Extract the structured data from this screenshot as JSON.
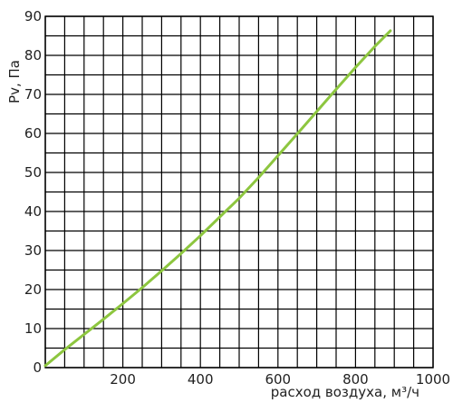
{
  "chart_data": {
    "type": "line",
    "title": "",
    "xlabel": "расход воздуха, м³/ч",
    "ylabel": "Pv, Па",
    "xlim": [
      0,
      1000
    ],
    "ylim": [
      0,
      90
    ],
    "x_ticks": [
      200,
      400,
      600,
      800,
      1000
    ],
    "y_ticks": [
      0,
      10,
      20,
      30,
      40,
      50,
      60,
      70,
      80,
      90
    ],
    "grid": true,
    "line_color": "#8dc63f",
    "grid_color": "#000000",
    "series": [
      {
        "x": [
          0,
          50,
          100,
          150,
          200,
          250,
          300,
          350,
          400,
          450,
          500,
          550,
          600,
          650,
          700,
          750,
          800,
          850,
          890
        ],
        "values": [
          0.5,
          4.6,
          8.5,
          12.4,
          16.4,
          20.5,
          24.8,
          29.2,
          33.8,
          38.6,
          43.4,
          48.7,
          54.3,
          59.9,
          65.6,
          71.3,
          76.9,
          82.3,
          86.3
        ]
      }
    ]
  }
}
